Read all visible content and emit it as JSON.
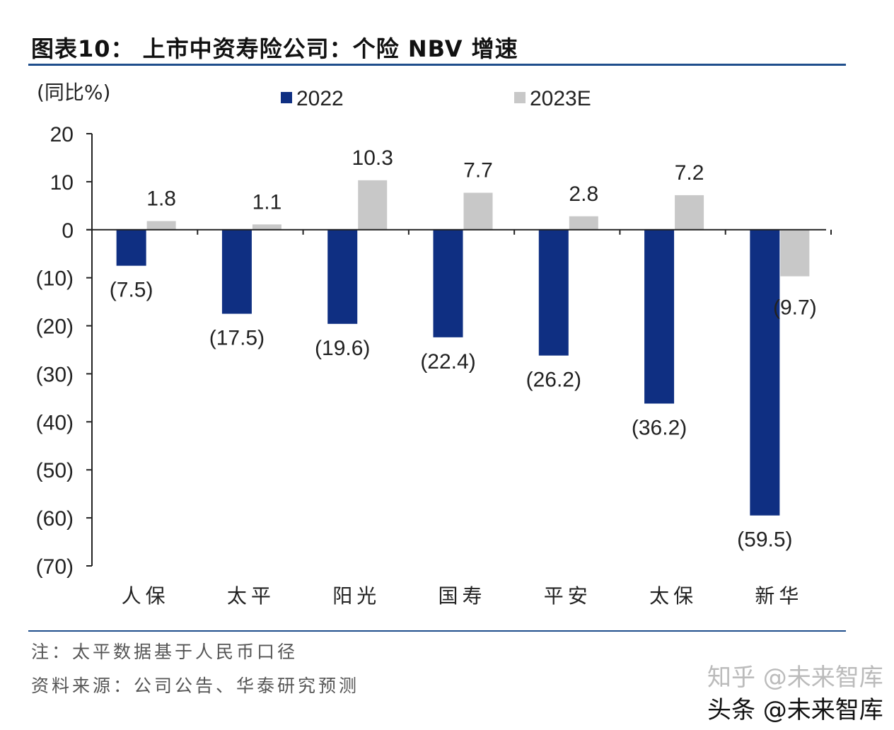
{
  "title": "图表10： 上市中资寿险公司：个险 NBV 增速",
  "note": "注：太平数据基于人民币口径",
  "source": "资料来源：公司公告、华泰研究预测",
  "watermark": [
    "知乎 @未来智库",
    "头条 @未来智库"
  ],
  "chart_data": {
    "type": "bar",
    "title": "上市中资寿险公司：个险 NBV 增速",
    "ylabel": "(同比%)",
    "xlabel": "",
    "ylim": [
      -70,
      20
    ],
    "yticks": [
      20,
      10,
      0,
      -10,
      -20,
      -30,
      -40,
      -50,
      -60,
      -70
    ],
    "ytick_labels": [
      "20",
      "10",
      "0",
      "(10)",
      "(20)",
      "(30)",
      "(40)",
      "(50)",
      "(60)",
      "(70)"
    ],
    "categories": [
      "人保",
      "太平",
      "阳光",
      "国寿",
      "平安",
      "太保",
      "新华"
    ],
    "series": [
      {
        "name": "2022",
        "color": "#0f2f82",
        "values": [
          -7.5,
          -17.5,
          -19.6,
          -22.4,
          -26.2,
          -36.2,
          -59.5
        ],
        "labels": [
          "(7.5)",
          "(17.5)",
          "(19.6)",
          "(22.4)",
          "(26.2)",
          "(36.2)",
          "(59.5)"
        ]
      },
      {
        "name": "2023E",
        "color": "#c8c8c8",
        "values": [
          1.8,
          1.1,
          10.3,
          7.7,
          2.8,
          7.2,
          -9.7
        ],
        "labels": [
          "1.8",
          "1.1",
          "10.3",
          "7.7",
          "2.8",
          "7.2",
          "(9.7)"
        ]
      }
    ],
    "legend": "top",
    "grid": false
  }
}
